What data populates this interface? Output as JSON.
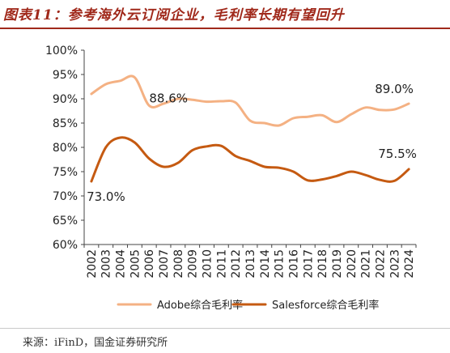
{
  "header": {
    "title": "图表11：参考海外云订阅企业，毛利率长期有望回升"
  },
  "source": "来源：iFinD，国金证券研究所",
  "chart_data": {
    "type": "line",
    "title": "",
    "xlabel": "",
    "ylabel": "",
    "x": [
      "2002",
      "2003",
      "2004",
      "2005",
      "2006",
      "2007",
      "2008",
      "2009",
      "2010",
      "2011",
      "2012",
      "2013",
      "2014",
      "2015",
      "2016",
      "2017",
      "2018",
      "2019",
      "2020",
      "2021",
      "2022",
      "2023",
      "2024"
    ],
    "ylim": [
      60,
      100
    ],
    "yticks": [
      "60%",
      "65%",
      "70%",
      "75%",
      "80%",
      "85%",
      "90%",
      "95%",
      "100%"
    ],
    "grid": false,
    "legend_position": "bottom",
    "series": [
      {
        "name": "Adobe综合毛利率",
        "color": "#f4b183",
        "values": [
          91.0,
          93.0,
          93.7,
          94.4,
          88.6,
          89.0,
          90.0,
          89.8,
          89.4,
          89.5,
          89.2,
          85.5,
          85.0,
          84.5,
          86.0,
          86.3,
          86.6,
          85.2,
          86.8,
          88.2,
          87.7,
          87.8,
          89.0
        ]
      },
      {
        "name": "Salesforce综合毛利率",
        "color": "#c55a11",
        "values": [
          73.0,
          80.0,
          82.0,
          81.0,
          77.7,
          76.0,
          76.8,
          79.4,
          80.2,
          80.3,
          78.2,
          77.2,
          76.0,
          75.8,
          75.0,
          73.2,
          73.4,
          74.1,
          75.0,
          74.3,
          73.3,
          73.1,
          75.5
        ]
      }
    ],
    "annotations": [
      {
        "text": "88.6%",
        "series": 0,
        "index": 4
      },
      {
        "text": "89.0%",
        "series": 0,
        "index": 22
      },
      {
        "text": "73.0%",
        "series": 1,
        "index": 0
      },
      {
        "text": "75.5%",
        "series": 1,
        "index": 22
      }
    ]
  }
}
